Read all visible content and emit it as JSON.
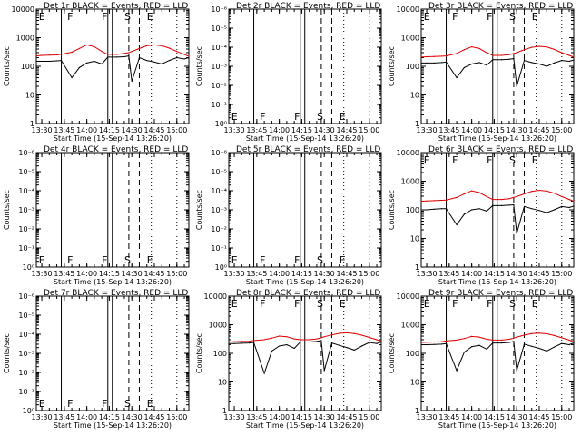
{
  "colors": {
    "background": "#ffffff",
    "events": "#000000",
    "lld": "#dd0000",
    "axes": "#000000"
  },
  "x_tick_labels": [
    "13:30",
    "13:45",
    "14:00",
    "14:15",
    "14:30",
    "14:45",
    "15:00"
  ],
  "x_label": "Start Time (15-Sep-14 13:26:20)",
  "y_label": "Counts/sec",
  "y_tick_labels": [
    "1",
    "10",
    "100",
    "1000",
    "10000"
  ],
  "y_tick_labels_empty": [
    "10⁰",
    "10⁻¹",
    "10⁻²",
    "10⁻³",
    "10⁻⁴",
    "10⁻⁵",
    "10⁻⁶"
  ],
  "chart_data": [
    {
      "type": "line",
      "title": "Det 1r BLACK = Events, RED = LLD",
      "has_data": true,
      "y_scale": "log",
      "ylim": [
        1,
        10000
      ],
      "xlim": [
        "13:26:20",
        "15:08:00"
      ],
      "flags": [
        {
          "label": "E",
          "time": "13:28"
        },
        {
          "label": "F",
          "time": "13:47"
        },
        {
          "label": "F",
          "time": "14:10"
        },
        {
          "label": "S",
          "time": "14:25"
        },
        {
          "label": "E",
          "time": "14:40"
        }
      ],
      "series": [
        {
          "name": "BLACK = Events",
          "x": [
            "13:26:20",
            "13:30",
            "13:35",
            "13:40",
            "13:43",
            "13:50",
            "13:55",
            "14:00",
            "14:05",
            "14:10",
            "14:14",
            "14:20",
            "14:25",
            "14:28",
            "14:30",
            "14:35",
            "14:40",
            "14:45",
            "14:50",
            "14:55",
            "15:00",
            "15:05",
            "15:08"
          ],
          "y": [
            150,
            150,
            150,
            155,
            160,
            40,
            90,
            130,
            150,
            120,
            210,
            210,
            215,
            230,
            30,
            200,
            160,
            140,
            120,
            160,
            200,
            180,
            200
          ]
        },
        {
          "name": "RED = LLD",
          "x": [
            "13:26:20",
            "13:30",
            "13:35",
            "13:40",
            "13:43",
            "13:50",
            "13:55",
            "14:00",
            "14:05",
            "14:10",
            "14:14",
            "14:20",
            "14:25",
            "14:28",
            "14:30",
            "14:35",
            "14:40",
            "14:45",
            "14:50",
            "14:55",
            "15:00",
            "15:05",
            "15:08"
          ],
          "y": [
            230,
            240,
            245,
            250,
            260,
            310,
            420,
            560,
            480,
            330,
            260,
            260,
            280,
            300,
            330,
            420,
            520,
            560,
            520,
            430,
            330,
            260,
            220
          ]
        }
      ]
    },
    {
      "type": "line",
      "title": "Det 2r BLACK = Events, RED = LLD",
      "has_data": false,
      "y_scale": "log",
      "ylim": [
        1e-06,
        1
      ],
      "xlim": [
        "13:26:20",
        "15:08:00"
      ],
      "flags": [
        {
          "label": "E",
          "time": "13:28"
        },
        {
          "label": "F",
          "time": "13:47"
        },
        {
          "label": "F",
          "time": "14:10"
        },
        {
          "label": "S",
          "time": "14:25"
        },
        {
          "label": "E",
          "time": "14:40"
        }
      ],
      "series": []
    },
    {
      "type": "line",
      "title": "Det 3r BLACK = Events, RED = LLD",
      "has_data": true,
      "y_scale": "log",
      "ylim": [
        1,
        10000
      ],
      "xlim": [
        "13:26:20",
        "15:08:00"
      ],
      "flags": [
        {
          "label": "E",
          "time": "13:28"
        },
        {
          "label": "F",
          "time": "13:47"
        },
        {
          "label": "F",
          "time": "14:10"
        },
        {
          "label": "S",
          "time": "14:25"
        },
        {
          "label": "E",
          "time": "14:40"
        }
      ],
      "series": [
        {
          "name": "BLACK = Events",
          "x": [
            "13:26:20",
            "13:30",
            "13:35",
            "13:40",
            "13:43",
            "13:50",
            "13:55",
            "14:00",
            "14:05",
            "14:10",
            "14:14",
            "14:20",
            "14:25",
            "14:28",
            "14:30",
            "14:35",
            "14:40",
            "14:45",
            "14:50",
            "14:55",
            "15:00",
            "15:05",
            "15:08"
          ],
          "y": [
            130,
            130,
            130,
            135,
            140,
            40,
            90,
            120,
            135,
            110,
            170,
            170,
            175,
            185,
            20,
            160,
            135,
            120,
            100,
            130,
            160,
            150,
            165
          ]
        },
        {
          "name": "RED = LLD",
          "x": [
            "13:26:20",
            "13:30",
            "13:35",
            "13:40",
            "13:43",
            "13:50",
            "13:55",
            "14:00",
            "14:05",
            "14:10",
            "14:14",
            "14:20",
            "14:25",
            "14:28",
            "14:30",
            "14:35",
            "14:40",
            "14:45",
            "14:50",
            "14:55",
            "15:00",
            "15:05",
            "15:08"
          ],
          "y": [
            210,
            215,
            220,
            225,
            230,
            280,
            380,
            480,
            420,
            300,
            240,
            240,
            255,
            280,
            300,
            380,
            460,
            500,
            470,
            390,
            300,
            240,
            210
          ]
        }
      ]
    },
    {
      "type": "line",
      "title": "Det 4r BLACK = Events, RED = LLD",
      "has_data": false,
      "y_scale": "log",
      "ylim": [
        1e-06,
        1
      ],
      "xlim": [
        "13:26:20",
        "15:08:00"
      ],
      "flags": [
        {
          "label": "E",
          "time": "13:28"
        },
        {
          "label": "F",
          "time": "13:47"
        },
        {
          "label": "F",
          "time": "14:10"
        },
        {
          "label": "S",
          "time": "14:25"
        },
        {
          "label": "E",
          "time": "14:40"
        }
      ],
      "series": []
    },
    {
      "type": "line",
      "title": "Det 5r BLACK = Events, RED = LLD",
      "has_data": false,
      "y_scale": "log",
      "ylim": [
        1e-06,
        1
      ],
      "xlim": [
        "13:26:20",
        "15:08:00"
      ],
      "flags": [
        {
          "label": "E",
          "time": "13:28"
        },
        {
          "label": "F",
          "time": "13:47"
        },
        {
          "label": "F",
          "time": "14:10"
        },
        {
          "label": "S",
          "time": "14:25"
        },
        {
          "label": "E",
          "time": "14:40"
        }
      ],
      "series": []
    },
    {
      "type": "line",
      "title": "Det 6r BLACK = Events, RED = LLD",
      "has_data": true,
      "y_scale": "log",
      "ylim": [
        1,
        10000
      ],
      "xlim": [
        "13:26:20",
        "15:08:00"
      ],
      "flags": [
        {
          "label": "E",
          "time": "13:28"
        },
        {
          "label": "F",
          "time": "13:47"
        },
        {
          "label": "F",
          "time": "14:10"
        },
        {
          "label": "S",
          "time": "14:25"
        },
        {
          "label": "E",
          "time": "14:40"
        }
      ],
      "series": [
        {
          "name": "BLACK = Events",
          "x": [
            "13:26:20",
            "13:30",
            "13:35",
            "13:40",
            "13:43",
            "13:50",
            "13:55",
            "14:00",
            "14:05",
            "14:10",
            "14:14",
            "14:20",
            "14:25",
            "14:28",
            "14:30",
            "14:35",
            "14:40",
            "14:45",
            "14:50",
            "14:55",
            "15:00",
            "15:05",
            "15:08"
          ],
          "y": [
            100,
            100,
            105,
            110,
            110,
            30,
            70,
            100,
            110,
            90,
            140,
            140,
            145,
            150,
            15,
            130,
            110,
            95,
            80,
            100,
            130,
            120,
            135
          ]
        },
        {
          "name": "RED = LLD",
          "x": [
            "13:26:20",
            "13:30",
            "13:35",
            "13:40",
            "13:43",
            "13:50",
            "13:55",
            "14:00",
            "14:05",
            "14:10",
            "14:14",
            "14:20",
            "14:25",
            "14:28",
            "14:30",
            "14:35",
            "14:40",
            "14:45",
            "14:50",
            "14:55",
            "15:00",
            "15:05",
            "15:08"
          ],
          "y": [
            200,
            205,
            210,
            215,
            220,
            270,
            360,
            460,
            400,
            290,
            230,
            230,
            245,
            270,
            290,
            360,
            440,
            480,
            450,
            380,
            290,
            230,
            200
          ]
        }
      ]
    },
    {
      "type": "line",
      "title": "Det 7r BLACK = Events, RED = LLD",
      "has_data": false,
      "y_scale": "log",
      "ylim": [
        1e-06,
        1
      ],
      "xlim": [
        "13:26:20",
        "15:08:00"
      ],
      "flags": [
        {
          "label": "E",
          "time": "13:28"
        },
        {
          "label": "F",
          "time": "13:47"
        },
        {
          "label": "F",
          "time": "14:10"
        },
        {
          "label": "S",
          "time": "14:25"
        },
        {
          "label": "E",
          "time": "14:40"
        }
      ],
      "series": []
    },
    {
      "type": "line",
      "title": "Det 8r BLACK = Events, RED = LLD",
      "has_data": true,
      "y_scale": "log",
      "ylim": [
        1,
        10000
      ],
      "xlim": [
        "13:26:20",
        "15:08:00"
      ],
      "flags": [
        {
          "label": "E",
          "time": "13:28"
        },
        {
          "label": "F",
          "time": "13:47"
        },
        {
          "label": "F",
          "time": "14:10"
        },
        {
          "label": "S",
          "time": "14:25"
        },
        {
          "label": "E",
          "time": "14:40"
        }
      ],
      "series": [
        {
          "name": "BLACK = Events",
          "x": [
            "13:26:20",
            "13:30",
            "13:35",
            "13:40",
            "13:43",
            "13:50",
            "13:55",
            "14:00",
            "14:05",
            "14:10",
            "14:14",
            "14:20",
            "14:25",
            "14:28",
            "14:30",
            "14:35",
            "14:40",
            "14:45",
            "14:50",
            "14:55",
            "15:00",
            "15:05",
            "15:08"
          ],
          "y": [
            220,
            220,
            225,
            230,
            240,
            20,
            120,
            180,
            200,
            150,
            250,
            250,
            260,
            280,
            25,
            230,
            190,
            160,
            130,
            180,
            240,
            220,
            250
          ]
        },
        {
          "name": "RED = LLD",
          "x": [
            "13:26:20",
            "13:30",
            "13:35",
            "13:40",
            "13:43",
            "13:50",
            "13:55",
            "14:00",
            "14:05",
            "14:10",
            "14:14",
            "14:20",
            "14:25",
            "14:28",
            "14:30",
            "14:35",
            "14:40",
            "14:45",
            "14:50",
            "14:55",
            "15:00",
            "15:05",
            "15:08"
          ],
          "y": [
            250,
            255,
            260,
            265,
            280,
            300,
            340,
            400,
            380,
            320,
            300,
            300,
            320,
            350,
            380,
            440,
            500,
            520,
            490,
            430,
            360,
            300,
            260
          ]
        }
      ]
    },
    {
      "type": "line",
      "title": "Det 9r BLACK = Events, RED = LLD",
      "has_data": true,
      "y_scale": "log",
      "ylim": [
        1,
        10000
      ],
      "xlim": [
        "13:26:20",
        "15:08:00"
      ],
      "flags": [
        {
          "label": "E",
          "time": "13:28"
        },
        {
          "label": "F",
          "time": "13:47"
        },
        {
          "label": "F",
          "time": "14:10"
        },
        {
          "label": "S",
          "time": "14:25"
        },
        {
          "label": "E",
          "time": "14:40"
        }
      ],
      "series": [
        {
          "name": "BLACK = Events",
          "x": [
            "13:26:20",
            "13:30",
            "13:35",
            "13:40",
            "13:43",
            "13:50",
            "13:55",
            "14:00",
            "14:05",
            "14:10",
            "14:14",
            "14:20",
            "14:25",
            "14:28",
            "14:30",
            "14:35",
            "14:40",
            "14:45",
            "14:50",
            "14:55",
            "15:00",
            "15:05",
            "15:08"
          ],
          "y": [
            200,
            200,
            205,
            210,
            220,
            25,
            110,
            170,
            190,
            140,
            230,
            230,
            240,
            260,
            25,
            210,
            175,
            150,
            120,
            165,
            220,
            200,
            230
          ]
        },
        {
          "name": "RED = LLD",
          "x": [
            "13:26:20",
            "13:30",
            "13:35",
            "13:40",
            "13:43",
            "13:50",
            "13:55",
            "14:00",
            "14:05",
            "14:10",
            "14:14",
            "14:20",
            "14:25",
            "14:28",
            "14:30",
            "14:35",
            "14:40",
            "14:45",
            "14:50",
            "14:55",
            "15:00",
            "15:05",
            "15:08"
          ],
          "y": [
            240,
            245,
            250,
            255,
            270,
            290,
            330,
            390,
            370,
            310,
            290,
            290,
            310,
            340,
            370,
            430,
            490,
            510,
            480,
            420,
            350,
            290,
            250
          ]
        }
      ]
    }
  ],
  "boundaries": {
    "solid": [
      "13:43",
      "14:14",
      "14:17"
    ],
    "dashed": [
      "14:28",
      "14:35"
    ],
    "dotted": [
      "14:43",
      "15:00"
    ]
  }
}
